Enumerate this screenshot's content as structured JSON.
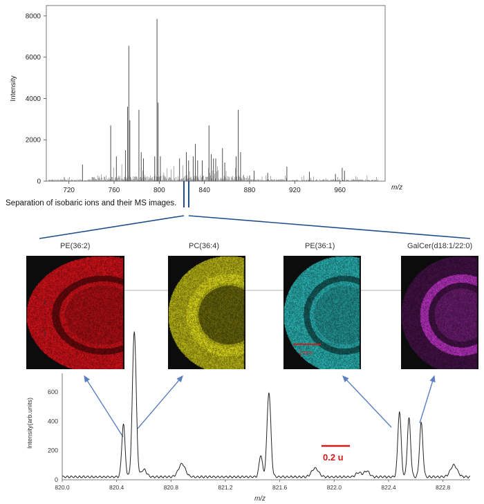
{
  "caption": "Separation of isobaric ions and their MS images.",
  "colors": {
    "axis": "#444444",
    "spectrum": "#222222",
    "connector": "#1f4e8c",
    "arrow": "#5b7fbf",
    "scalebar": "#d01a1a"
  },
  "chart_data": [
    {
      "type": "line",
      "title": "",
      "xlabel": "m/z",
      "ylabel": "Intensity",
      "xlim": [
        700,
        1000
      ],
      "ylim": [
        0,
        8500
      ],
      "xticks": [
        720,
        760,
        800,
        840,
        880,
        920,
        960
      ],
      "yticks": [
        0,
        2000,
        4000,
        6000,
        8000
      ],
      "grid": false,
      "peaks": [
        {
          "x": 732,
          "y": 800
        },
        {
          "x": 757,
          "y": 2700
        },
        {
          "x": 762,
          "y": 1200
        },
        {
          "x": 770,
          "y": 1500
        },
        {
          "x": 772,
          "y": 3600
        },
        {
          "x": 773,
          "y": 6550
        },
        {
          "x": 774,
          "y": 2950
        },
        {
          "x": 782,
          "y": 3450
        },
        {
          "x": 784,
          "y": 1400
        },
        {
          "x": 786,
          "y": 1100
        },
        {
          "x": 796,
          "y": 1200
        },
        {
          "x": 798,
          "y": 7850
        },
        {
          "x": 799,
          "y": 3800
        },
        {
          "x": 801,
          "y": 1200
        },
        {
          "x": 818,
          "y": 1100
        },
        {
          "x": 824,
          "y": 1400
        },
        {
          "x": 826,
          "y": 1000
        },
        {
          "x": 830,
          "y": 1200
        },
        {
          "x": 832,
          "y": 1800
        },
        {
          "x": 834,
          "y": 1000
        },
        {
          "x": 838,
          "y": 1000
        },
        {
          "x": 844,
          "y": 2700
        },
        {
          "x": 846,
          "y": 1300
        },
        {
          "x": 848,
          "y": 1100
        },
        {
          "x": 850,
          "y": 1100
        },
        {
          "x": 856,
          "y": 1600
        },
        {
          "x": 858,
          "y": 900
        },
        {
          "x": 868,
          "y": 1200
        },
        {
          "x": 870,
          "y": 3450
        },
        {
          "x": 872,
          "y": 1400
        },
        {
          "x": 884,
          "y": 500
        },
        {
          "x": 896,
          "y": 400
        },
        {
          "x": 913,
          "y": 700
        },
        {
          "x": 933,
          "y": 450
        },
        {
          "x": 956,
          "y": 350
        },
        {
          "x": 962,
          "y": 650
        },
        {
          "x": 964,
          "y": 500
        }
      ]
    },
    {
      "type": "line",
      "title": "",
      "xlabel": "m/z",
      "ylabel": "Intensity(arb.units)",
      "xlim": [
        820.0,
        823.0
      ],
      "ylim": [
        0,
        800
      ],
      "xticks": [
        820.0,
        820.4,
        820.8,
        821.2,
        821.6,
        822.0,
        822.4,
        822.8
      ],
      "yticks": [
        0,
        200,
        400,
        600
      ],
      "grid": false,
      "baseline": 20,
      "peaks": [
        {
          "x": 820.45,
          "y": 360,
          "w": 0.012
        },
        {
          "x": 820.53,
          "y": 1000,
          "w": 0.014
        },
        {
          "x": 820.6,
          "y": 50,
          "w": 0.02
        },
        {
          "x": 820.88,
          "y": 90,
          "w": 0.025
        },
        {
          "x": 821.46,
          "y": 150,
          "w": 0.012
        },
        {
          "x": 821.52,
          "y": 580,
          "w": 0.014
        },
        {
          "x": 821.86,
          "y": 60,
          "w": 0.025
        },
        {
          "x": 822.18,
          "y": 30,
          "w": 0.02
        },
        {
          "x": 822.24,
          "y": 40,
          "w": 0.02
        },
        {
          "x": 822.48,
          "y": 450,
          "w": 0.012
        },
        {
          "x": 822.55,
          "y": 400,
          "w": 0.012
        },
        {
          "x": 822.64,
          "y": 370,
          "w": 0.012
        },
        {
          "x": 822.88,
          "y": 80,
          "w": 0.025
        }
      ],
      "scalebar": {
        "label": "0.2 u",
        "value": 0.2
      }
    }
  ],
  "ms_images": [
    {
      "label": "PE(36:2)",
      "color": "#e8141c",
      "side_ticks": [
        "1",
        "1"
      ],
      "scale_label": ""
    },
    {
      "label": "PC(36:4)",
      "color": "#e6e21c",
      "side_ticks": [],
      "scale_label": ""
    },
    {
      "label": "PE(36:1)",
      "color": "#2fc6c6",
      "side_ticks": [],
      "scale_label": "2mm"
    },
    {
      "label": "GalCer(d18:1/22:0)",
      "color": "#c033c8",
      "side_ticks": [],
      "scale_label": ""
    }
  ]
}
